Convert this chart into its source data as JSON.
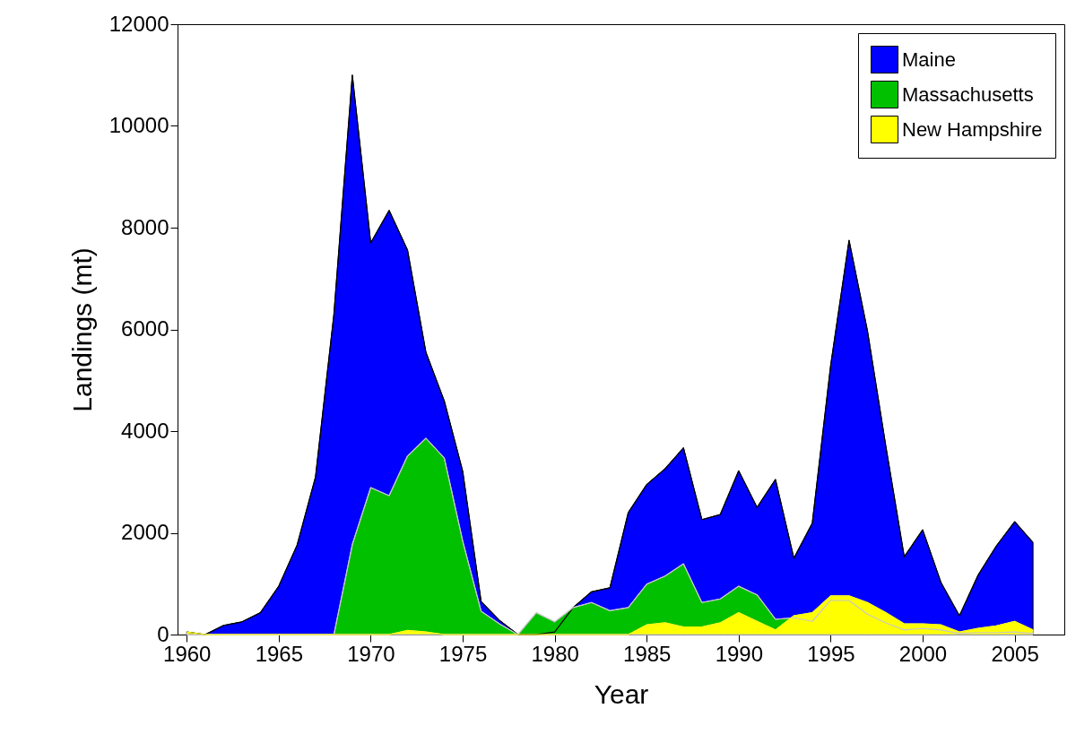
{
  "chart_data": {
    "type": "area",
    "xlabel": "Year",
    "ylabel": "Landings (mt)",
    "x": [
      1960,
      1961,
      1962,
      1963,
      1964,
      1965,
      1966,
      1967,
      1968,
      1969,
      1970,
      1971,
      1972,
      1973,
      1974,
      1975,
      1976,
      1977,
      1978,
      1979,
      1980,
      1981,
      1982,
      1983,
      1984,
      1985,
      1986,
      1987,
      1988,
      1989,
      1990,
      1991,
      1992,
      1993,
      1994,
      1995,
      1996,
      1997,
      1998,
      1999,
      2000,
      2001,
      2002,
      2003,
      2004,
      2005,
      2006
    ],
    "series": [
      {
        "name": "Maine",
        "color": "#0000ff",
        "values": [
          50,
          0,
          180,
          250,
          430,
          950,
          1760,
          3100,
          6300,
          11000,
          7700,
          8340,
          7560,
          5550,
          4590,
          3210,
          650,
          280,
          0,
          0,
          50,
          530,
          840,
          920,
          2400,
          2950,
          3260,
          3670,
          2260,
          2360,
          3220,
          2500,
          3050,
          1500,
          2190,
          5290,
          7750,
          5970,
          3700,
          1530,
          2060,
          1020,
          370,
          1160,
          1740,
          2220,
          1810
        ]
      },
      {
        "name": "Massachusetts",
        "color": "#00c000",
        "values": [
          0,
          0,
          0,
          0,
          0,
          0,
          0,
          0,
          0,
          1770,
          2890,
          2730,
          3510,
          3860,
          3470,
          1840,
          460,
          210,
          0,
          430,
          250,
          530,
          630,
          470,
          530,
          990,
          1150,
          1390,
          630,
          700,
          950,
          780,
          300,
          330,
          260,
          670,
          670,
          400,
          230,
          90,
          120,
          90,
          20,
          40,
          40,
          50,
          20
        ]
      },
      {
        "name": "New Hampshire",
        "color": "#ffff00",
        "values": [
          50,
          0,
          0,
          0,
          0,
          0,
          0,
          0,
          0,
          0,
          0,
          0,
          80,
          50,
          0,
          0,
          0,
          0,
          0,
          0,
          0,
          0,
          0,
          0,
          0,
          190,
          230,
          150,
          150,
          230,
          430,
          260,
          90,
          370,
          430,
          760,
          760,
          630,
          430,
          210,
          210,
          190,
          50,
          120,
          170,
          260,
          90
        ]
      }
    ],
    "xlim": [
      1959.5,
      2007.7
    ],
    "xticks": [
      1960,
      1965,
      1970,
      1975,
      1980,
      1985,
      1990,
      1995,
      2000,
      2005
    ],
    "ylim": [
      0,
      12000
    ],
    "yticks": [
      0,
      2000,
      4000,
      6000,
      8000,
      10000,
      12000
    ],
    "grid": false,
    "legend": "top right"
  }
}
